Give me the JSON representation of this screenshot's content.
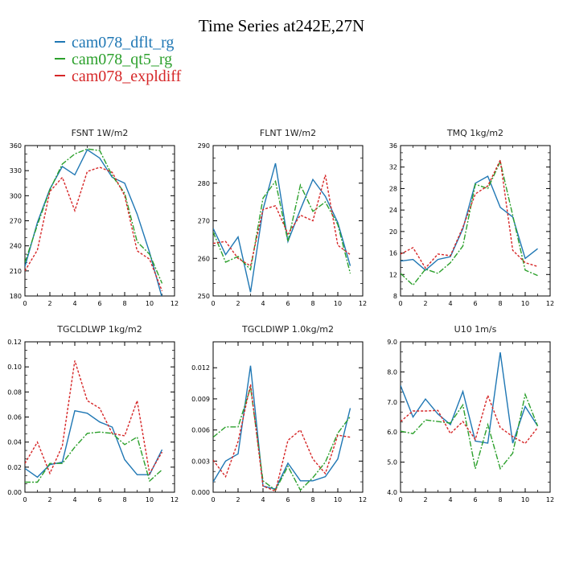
{
  "page": {
    "title": "Time Series at242E,27N"
  },
  "legend": [
    {
      "label": "cam078_dflt_rg",
      "color": "#1f77b4"
    },
    {
      "label": "cam078_qt5_rg",
      "color": "#2ca02c"
    },
    {
      "label": "cam078_expldiff",
      "color": "#d62728"
    }
  ],
  "chart_data": [
    {
      "type": "line",
      "title": "FSNT   1W/m2",
      "x": [
        0,
        1,
        2,
        3,
        4,
        5,
        6,
        7,
        8,
        9,
        10,
        11
      ],
      "xlim": [
        0,
        12
      ],
      "xticks": [
        "0",
        "2",
        "4",
        "6",
        "8",
        "10",
        "12"
      ],
      "ylim": [
        180,
        360
      ],
      "yticks": [
        "180",
        "210",
        "240",
        "270",
        "300",
        "330",
        "360"
      ],
      "series": [
        {
          "name": "cam078_dflt_rg",
          "values": [
            215,
            268,
            308,
            335,
            325,
            355,
            345,
            322,
            315,
            278,
            232,
            178
          ]
        },
        {
          "name": "cam078_qt5_rg",
          "values": [
            220,
            265,
            307,
            338,
            350,
            356,
            354,
            324,
            303,
            245,
            230,
            195
          ]
        },
        {
          "name": "cam078_expldiff",
          "values": [
            210,
            235,
            305,
            322,
            282,
            329,
            334,
            328,
            300,
            234,
            224,
            186
          ]
        }
      ]
    },
    {
      "type": "line",
      "title": "FLNT   1W/m2",
      "x": [
        0,
        1,
        2,
        3,
        4,
        5,
        6,
        7,
        8,
        9,
        10,
        11
      ],
      "xlim": [
        0,
        12
      ],
      "xticks": [
        "0",
        "2",
        "4",
        "6",
        "8",
        "10",
        "12"
      ],
      "ylim": [
        250,
        290
      ],
      "yticks": [
        "250",
        "260",
        "270",
        "280",
        "290"
      ],
      "series": [
        {
          "name": "cam078_dflt_rg",
          "values": [
            268,
            261,
            265.7,
            251,
            273,
            285.3,
            264.5,
            273,
            281,
            276.5,
            269.5,
            258
          ]
        },
        {
          "name": "cam078_qt5_rg",
          "values": [
            267,
            259,
            260.5,
            257,
            276,
            280.5,
            264.5,
            279.5,
            272.5,
            275,
            269,
            256
          ]
        },
        {
          "name": "cam078_expldiff",
          "values": [
            264,
            264.5,
            260,
            258,
            273,
            274,
            266.5,
            271.5,
            270,
            282.2,
            263.5,
            261
          ]
        }
      ]
    },
    {
      "type": "line",
      "title": "TMQ   1kg/m2",
      "x": [
        0,
        1,
        2,
        3,
        4,
        5,
        6,
        7,
        8,
        9,
        10,
        11
      ],
      "xlim": [
        0,
        12
      ],
      "xticks": [
        "0",
        "2",
        "4",
        "6",
        "8",
        "10",
        "12"
      ],
      "ylim": [
        8,
        36
      ],
      "yticks": [
        "8",
        "12",
        "16",
        "20",
        "24",
        "28",
        "32",
        "36"
      ],
      "series": [
        {
          "name": "cam078_dflt_rg",
          "values": [
            14.5,
            14.8,
            12.8,
            14.8,
            15.3,
            20.5,
            29,
            30.3,
            24.5,
            22.7,
            15,
            16.8
          ]
        },
        {
          "name": "cam078_qt5_rg",
          "values": [
            12.2,
            10,
            13,
            12.2,
            14.2,
            17.3,
            28.8,
            28,
            33,
            23,
            12.8,
            11.8
          ]
        },
        {
          "name": "cam078_expldiff",
          "values": [
            15.8,
            17,
            13.2,
            15.8,
            15.5,
            20.8,
            27,
            28.5,
            33.3,
            16.5,
            14.2,
            13.5
          ]
        }
      ]
    },
    {
      "type": "line",
      "title": "TGCLDLWP   1kg/m2",
      "x": [
        0,
        1,
        2,
        3,
        4,
        5,
        6,
        7,
        8,
        9,
        10,
        11
      ],
      "xlim": [
        0,
        12
      ],
      "xticks": [
        "0",
        "2",
        "4",
        "6",
        "8",
        "10",
        "12"
      ],
      "ylim": [
        0,
        0.12
      ],
      "yticks": [
        "0.00",
        "0.02",
        "0.04",
        "0.06",
        "0.08",
        "0.10",
        "0.12"
      ],
      "series": [
        {
          "name": "cam078_dflt_rg",
          "values": [
            0.019,
            0.012,
            0.022,
            0.024,
            0.065,
            0.063,
            0.056,
            0.052,
            0.026,
            0.014,
            0.014,
            0.034
          ]
        },
        {
          "name": "cam078_qt5_rg",
          "values": [
            0.008,
            0.008,
            0.023,
            0.023,
            0.036,
            0.047,
            0.048,
            0.047,
            0.038,
            0.044,
            0.009,
            0.018
          ]
        },
        {
          "name": "cam078_expldiff",
          "values": [
            0.023,
            0.04,
            0.015,
            0.037,
            0.105,
            0.073,
            0.067,
            0.047,
            0.045,
            0.073,
            0.015,
            0.032
          ]
        }
      ]
    },
    {
      "type": "line",
      "title": "TGCLDIWP   1.0kg/m2",
      "x": [
        0,
        1,
        2,
        3,
        4,
        5,
        6,
        7,
        8,
        9,
        10,
        11
      ],
      "xlim": [
        0,
        12
      ],
      "xticks": [
        "0",
        "2",
        "4",
        "6",
        "8",
        "10",
        "12"
      ],
      "ylim": [
        0,
        0.0145
      ],
      "yticks": [
        "0.000",
        "0.003",
        "0.006",
        "0.009",
        "0.012"
      ],
      "series": [
        {
          "name": "cam078_dflt_rg",
          "values": [
            0.001,
            0.003,
            0.0037,
            0.0122,
            0.0006,
            0.0003,
            0.0028,
            0.0011,
            0.0011,
            0.0015,
            0.0032,
            0.0081
          ]
        },
        {
          "name": "cam078_qt5_rg",
          "values": [
            0.0053,
            0.0063,
            0.0063,
            0.0101,
            0.0011,
            0.0002,
            0.0025,
            0.0002,
            0.0014,
            0.0029,
            0.0057,
            0.0073
          ]
        },
        {
          "name": "cam078_expldiff",
          "values": [
            0.0031,
            0.0015,
            0.0049,
            0.0104,
            0.0006,
            0.0001,
            0.005,
            0.006,
            0.0032,
            0.0018,
            0.0055,
            0.0053
          ]
        }
      ]
    },
    {
      "type": "line",
      "title": "U10   1m/s",
      "x": [
        0,
        1,
        2,
        3,
        4,
        5,
        6,
        7,
        8,
        9,
        10,
        11
      ],
      "xlim": [
        0,
        12
      ],
      "xticks": [
        "0",
        "2",
        "4",
        "6",
        "8",
        "10",
        "12"
      ],
      "ylim": [
        4,
        9
      ],
      "yticks": [
        "4.0",
        "5.0",
        "6.0",
        "7.0",
        "8.0",
        "9.0"
      ],
      "series": [
        {
          "name": "cam078_dflt_rg",
          "values": [
            7.55,
            6.5,
            7.1,
            6.6,
            6.25,
            7.35,
            5.7,
            5.63,
            8.65,
            5.63,
            6.85,
            6.2
          ]
        },
        {
          "name": "cam078_qt5_rg",
          "values": [
            6.03,
            5.95,
            6.4,
            6.35,
            6.3,
            6.9,
            4.78,
            6.25,
            4.78,
            5.3,
            7.25,
            6.2
          ]
        },
        {
          "name": "cam078_expldiff",
          "values": [
            6.35,
            6.7,
            6.7,
            6.72,
            5.95,
            6.35,
            5.75,
            7.22,
            6.15,
            5.85,
            5.62,
            6.15
          ]
        }
      ]
    }
  ]
}
